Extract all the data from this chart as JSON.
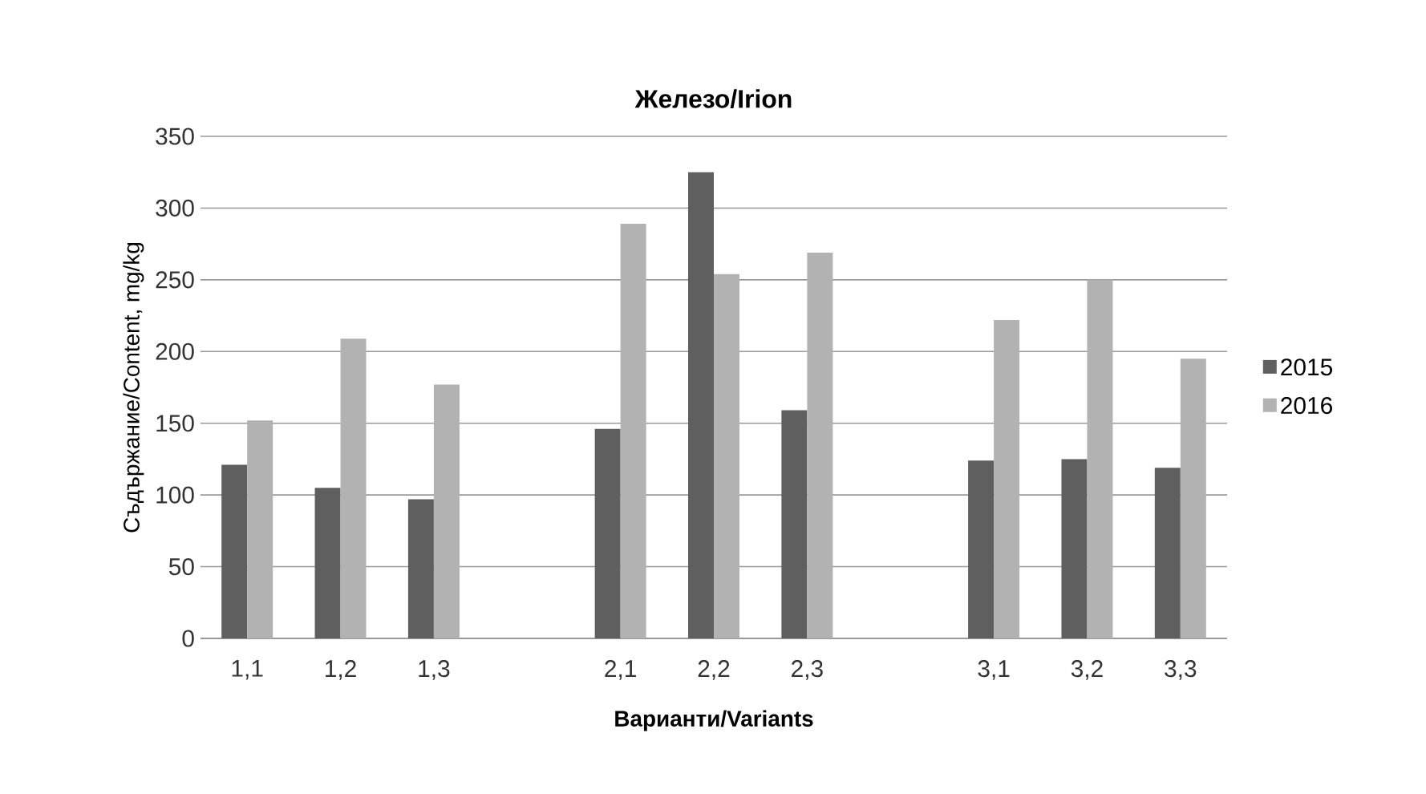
{
  "chart_data": {
    "type": "bar",
    "title": "Железо/Irion",
    "xlabel": "Варианти/Variants",
    "ylabel": "Съдържание/Content, mg/kg",
    "categories": [
      "1,1",
      "1,2",
      "1,3",
      null,
      "2,1",
      "2,2",
      "2,3",
      null,
      "3,1",
      "3,2",
      "3,3"
    ],
    "series": [
      {
        "name": "2015",
        "color": "#5f5f5f",
        "values": [
          121,
          105,
          97,
          null,
          146,
          325,
          159,
          null,
          124,
          125,
          119
        ]
      },
      {
        "name": "2016",
        "color": "#b2b2b2",
        "values": [
          152,
          209,
          177,
          null,
          289,
          254,
          269,
          null,
          222,
          250,
          195
        ]
      }
    ],
    "ylim": [
      0,
      350
    ],
    "yticks": [
      0,
      50,
      100,
      150,
      200,
      250,
      300,
      350
    ],
    "grid": "y",
    "legend": "right"
  }
}
